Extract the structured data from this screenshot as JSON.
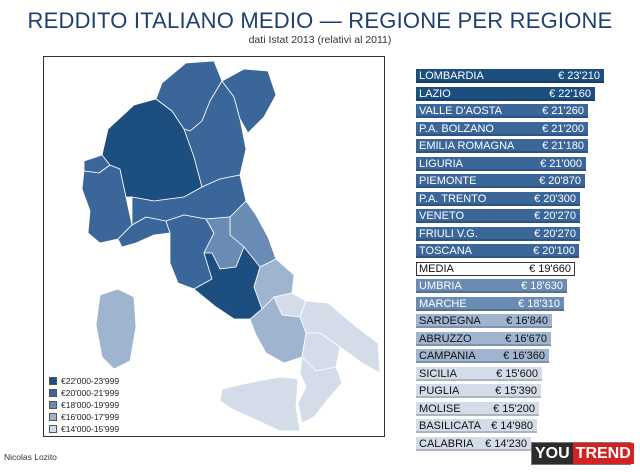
{
  "title": "REDDITO ITALIANO MEDIO — REGIONE PER REGIONE",
  "subtitle": "dati Istat 2013 (relativi al 2011)",
  "credit": "Nicolas Lozito",
  "logo": {
    "part1": "YOU",
    "part2": "TREND"
  },
  "colors": {
    "band_top": "#1c4e80",
    "band_mid": "#3a6699",
    "band_low": "#6a8bb3",
    "band_lower": "#9fb4cf",
    "band_lowest": "#d3dce8",
    "title": "#1f3f6e"
  },
  "legend": [
    {
      "label": "€22'000-23'999",
      "color": "#1c4e80"
    },
    {
      "label": "€20'000-21'999",
      "color": "#3a6699"
    },
    {
      "label": "€18'000-19'999",
      "color": "#6a8bb3"
    },
    {
      "label": "€16'000-17'999",
      "color": "#9fb4cf"
    },
    {
      "label": "€14'000-15'999",
      "color": "#d3dce8"
    }
  ],
  "map_regions": [
    {
      "name": "Lombardia",
      "band": 0
    },
    {
      "name": "Piemonte",
      "band": 1
    },
    {
      "name": "Valle d'Aosta",
      "band": 1
    },
    {
      "name": "Trentino-Alto Adige",
      "band": 1
    },
    {
      "name": "Veneto",
      "band": 1
    },
    {
      "name": "Friuli V.G.",
      "band": 1
    },
    {
      "name": "Liguria",
      "band": 1
    },
    {
      "name": "Emilia Romagna",
      "band": 1
    },
    {
      "name": "Toscana",
      "band": 1
    },
    {
      "name": "Lazio",
      "band": 0
    },
    {
      "name": "Marche",
      "band": 2
    },
    {
      "name": "Umbria",
      "band": 2
    },
    {
      "name": "Abruzzo",
      "band": 3
    },
    {
      "name": "Sardegna",
      "band": 3
    },
    {
      "name": "Campania",
      "band": 3
    },
    {
      "name": "Molise",
      "band": 4
    },
    {
      "name": "Puglia",
      "band": 4
    },
    {
      "name": "Basilicata",
      "band": 4
    },
    {
      "name": "Calabria",
      "band": 4
    },
    {
      "name": "Sicilia",
      "band": 4
    }
  ],
  "chart_data": {
    "type": "bar",
    "title": "REDDITO ITALIANO MEDIO — REGIONE PER REGIONE",
    "subtitle": "dati Istat 2013 (relativi al 2011)",
    "categories": [
      "LOMBARDIA",
      "LAZIO",
      "VALLE D'AOSTA",
      "P.A. BOLZANO",
      "EMILIA ROMAGNA",
      "LIGURIA",
      "PIEMONTE",
      "P.A. TRENTO",
      "VENETO",
      "FRIULI V.G.",
      "TOSCANA",
      "MEDIA",
      "UMBRIA",
      "MARCHE",
      "SARDEGNA",
      "ABRUZZO",
      "CAMPANIA",
      "SICILIA",
      "PUGLIA",
      "MOLISE",
      "BASILICATA",
      "CALABRIA"
    ],
    "values": [
      23210,
      22160,
      21260,
      21200,
      21180,
      21000,
      20870,
      20300,
      20270,
      20270,
      20100,
      19660,
      18630,
      18310,
      16840,
      16670,
      16360,
      15600,
      15390,
      15200,
      14980,
      14230
    ],
    "value_labels": [
      "€ 23'210",
      "€ 22'160",
      "€ 21'260",
      "€ 21'200",
      "€ 21'180",
      "€ 21'000",
      "€ 20'870",
      "€ 20'300",
      "€ 20'270",
      "€ 20'270",
      "€ 20'100",
      "€ 19'660",
      "€ 18'630",
      "€ 18'310",
      "€ 16'840",
      "€ 16'670",
      "€ 16'360",
      "€ 15'600",
      "€ 15'390",
      "€ 15'200",
      "€ 14'980",
      "€ 14'230"
    ],
    "bands": [
      0,
      0,
      1,
      1,
      1,
      1,
      1,
      1,
      1,
      1,
      1,
      -1,
      2,
      2,
      3,
      3,
      3,
      4,
      4,
      4,
      4,
      4
    ],
    "orientation": "horizontal",
    "xlim": [
      0,
      23210
    ],
    "xlabel": "",
    "ylabel": "",
    "unit": "€"
  }
}
